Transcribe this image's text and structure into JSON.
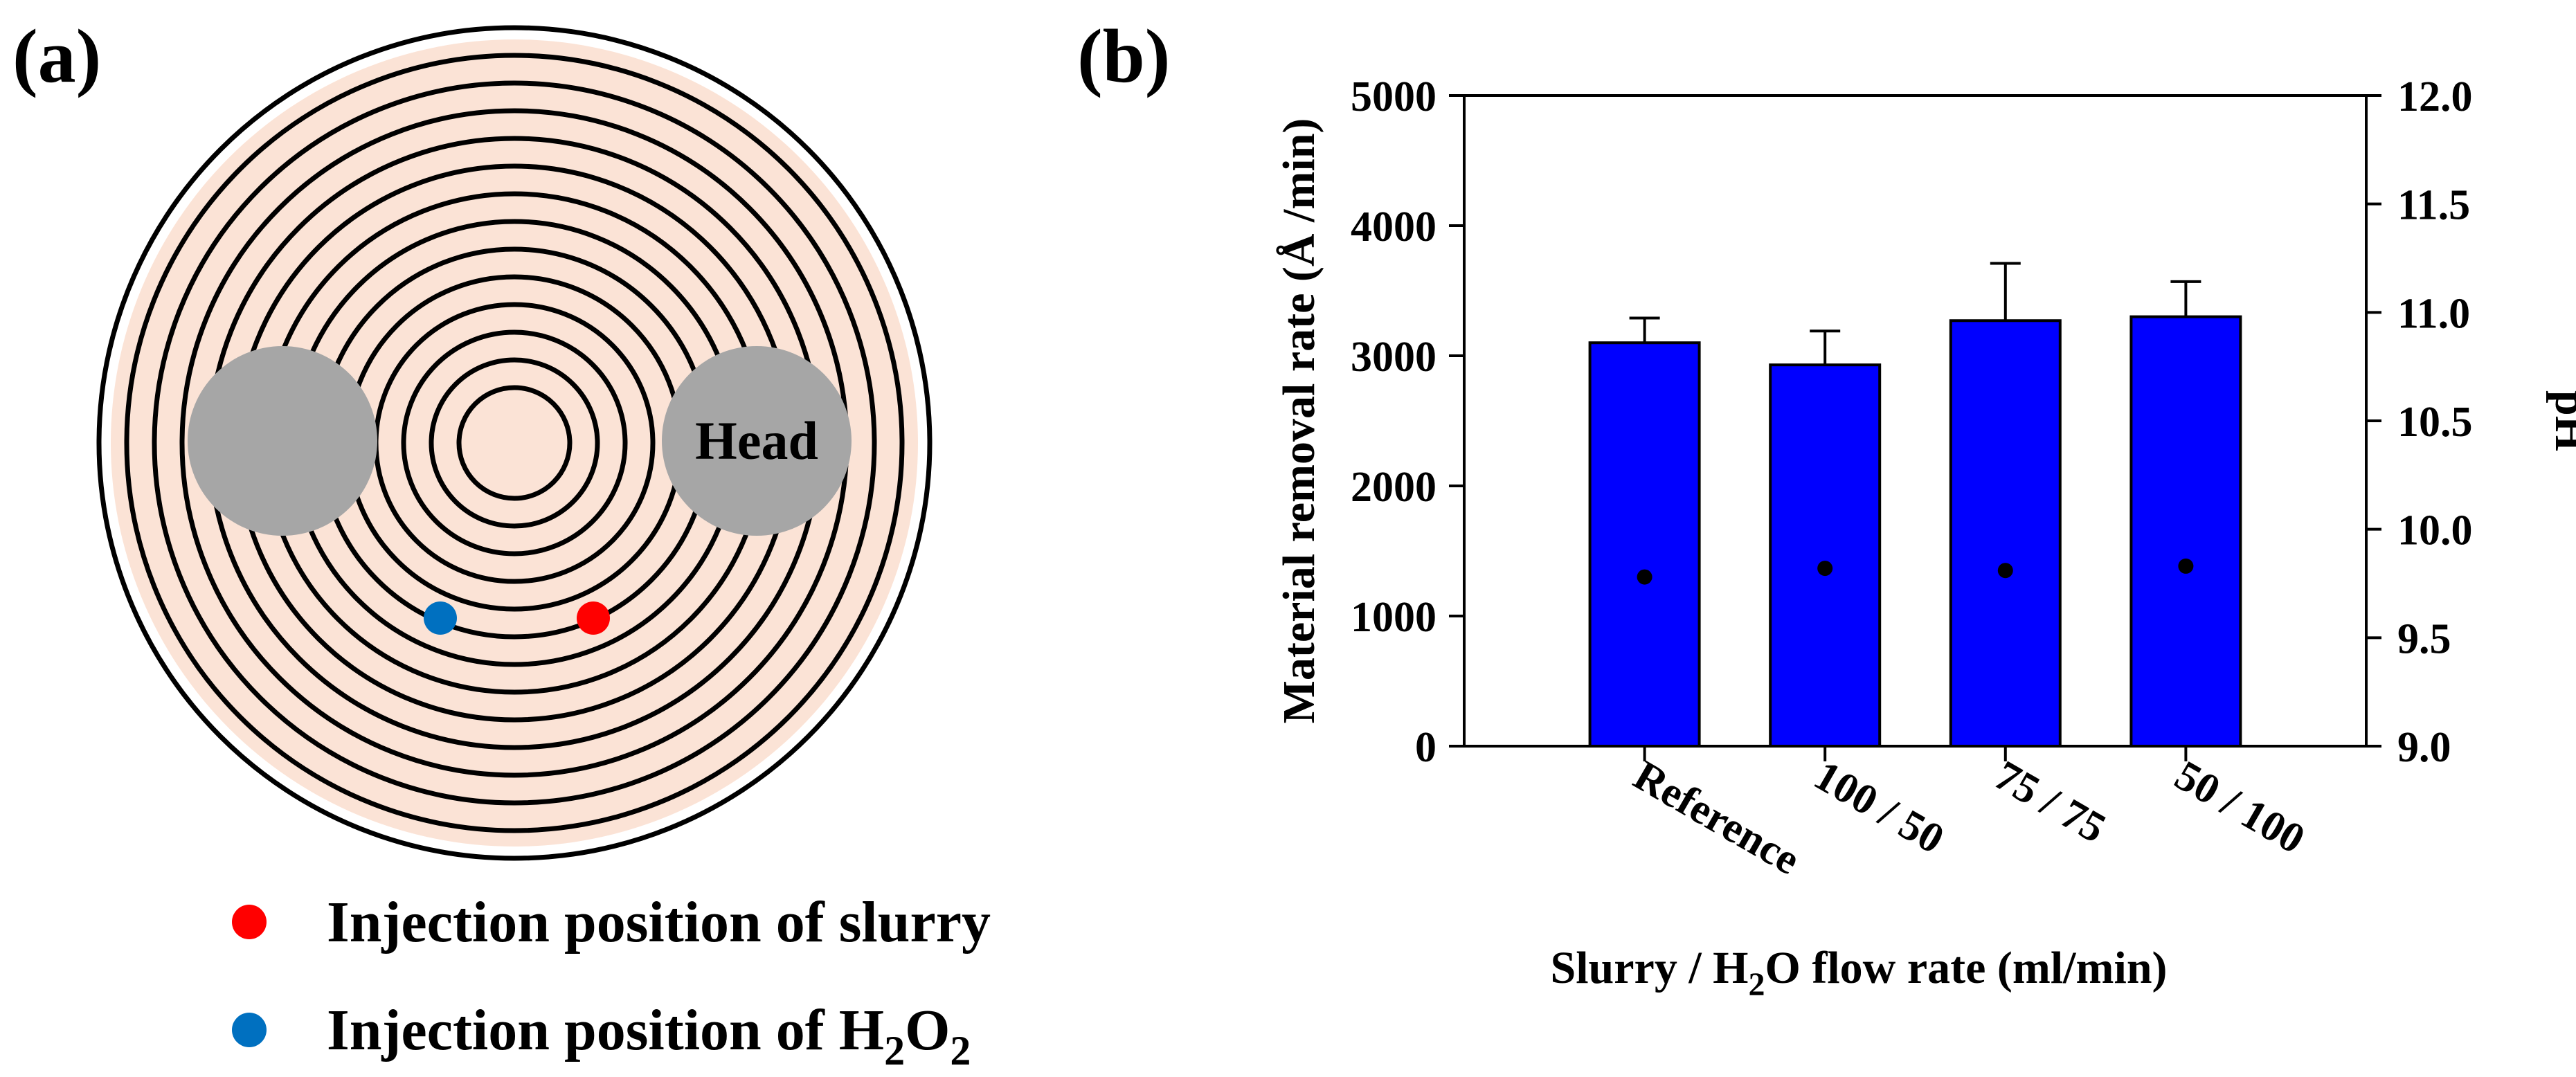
{
  "panel_a": {
    "label": "(a)",
    "head_label": "Head",
    "legend": [
      {
        "name": "slurry",
        "text": "Injection position of slurry",
        "color": "#ff0000"
      },
      {
        "name": "h2o2",
        "text_prefix": "Injection position of H",
        "sub1": "2",
        "mid": "O",
        "sub2": "2",
        "color": "#0070c0"
      }
    ],
    "colors": {
      "pad": "#fbe3d6",
      "groove": "#000000",
      "head": "#a6a6a6"
    }
  },
  "panel_b": {
    "label": "(b)"
  },
  "chart_data": {
    "type": "bar",
    "categories": [
      "Reference",
      "100 / 50",
      "75 / 75",
      "50 / 100"
    ],
    "series": [
      {
        "name": "Material removal rate",
        "axis": "left",
        "values": [
          3100,
          2930,
          3270,
          3300
        ],
        "errors": [
          190,
          260,
          440,
          270
        ],
        "color": "#0000ff"
      },
      {
        "name": "pH",
        "axis": "right",
        "values": [
          9.78,
          9.82,
          9.81,
          9.83
        ],
        "color": "#000000"
      }
    ],
    "ylim": [
      0,
      5000
    ],
    "yticks": [
      "0",
      "1000",
      "2000",
      "3000",
      "4000",
      "5000"
    ],
    "y2lim": [
      9.0,
      12.0
    ],
    "y2ticks": [
      "9.0",
      "9.5",
      "10.0",
      "10.5",
      "11.0",
      "11.5",
      "12.0"
    ],
    "ylabel": "Material removal rate (Å /min)",
    "y2label": "pH",
    "xlabel_prefix": "Slurry / H",
    "xlabel_sub": "2",
    "xlabel_suffix": "O flow rate (ml/min)"
  }
}
